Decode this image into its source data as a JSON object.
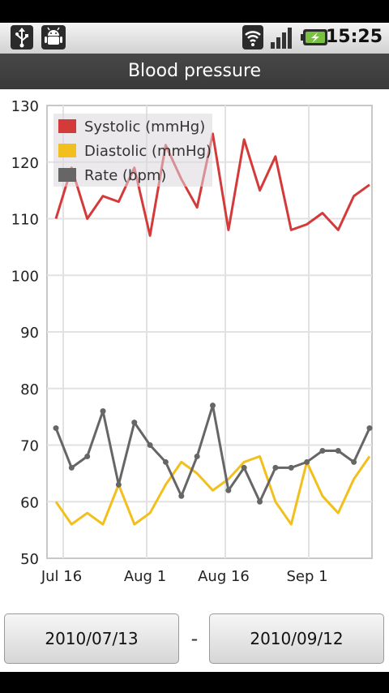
{
  "status_bar": {
    "time": "15:25",
    "icons": [
      "usb-icon",
      "android-debug-icon",
      "wifi-icon",
      "signal-icon",
      "battery-charging-icon"
    ]
  },
  "title": "Blood pressure",
  "chart_data": {
    "type": "line",
    "x_labels": [
      "Jul 16",
      "Aug 1",
      "Aug 16",
      "Sep 1"
    ],
    "ylim": [
      50,
      130
    ],
    "y_ticks": [
      "130",
      "120",
      "110",
      "100",
      "90",
      "80",
      "70",
      "60",
      "50"
    ],
    "grid": true,
    "legend": "top-left",
    "series": [
      {
        "name": "Systolic (mmHg)",
        "color": "#d53a3a",
        "values": [
          110,
          119,
          110,
          114,
          113,
          119,
          107,
          123,
          117,
          112,
          125,
          108,
          124,
          115,
          121,
          108,
          109,
          111,
          108,
          114,
          116
        ],
        "markers": false
      },
      {
        "name": "Diastolic (mmHg)",
        "color": "#f2bf1c",
        "values": [
          60,
          56,
          58,
          56,
          63,
          56,
          58,
          63,
          67,
          65,
          62,
          64,
          67,
          68,
          60,
          56,
          67,
          61,
          58,
          64,
          68
        ],
        "markers": false
      },
      {
        "name": "Rate (bpm)",
        "color": "#666666",
        "values": [
          73,
          66,
          68,
          76,
          63,
          74,
          70,
          67,
          61,
          68,
          77,
          62,
          66,
          60,
          66,
          66,
          67,
          69,
          69,
          67,
          73
        ],
        "markers": true
      }
    ]
  },
  "date_range": {
    "start": "2010/07/13",
    "separator": "-",
    "end": "2010/09/12"
  }
}
